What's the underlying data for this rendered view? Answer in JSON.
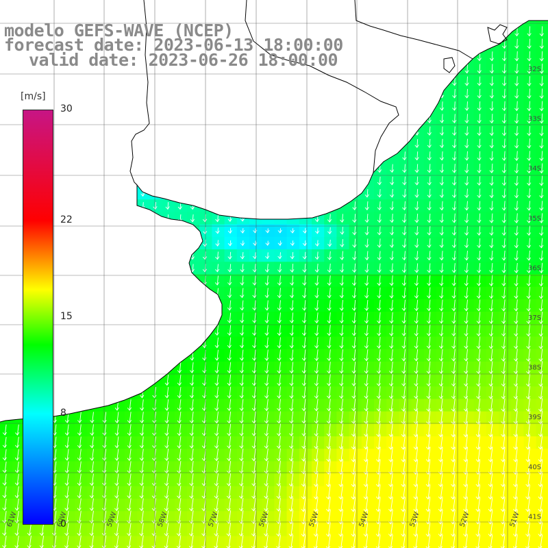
{
  "title": {
    "line1": "modelo GEFS-WAVE (NCEP)",
    "line2": "forecast date: 2023-06-13 18:00:00",
    "line3": "valid date: 2023-06-26 18:00:00"
  },
  "colorbar": {
    "unit": "[m/s]",
    "ticks": [
      {
        "value": 30,
        "label": "30"
      },
      {
        "value": 22,
        "label": "22"
      },
      {
        "value": 15,
        "label": "15"
      },
      {
        "value": 8,
        "label": "8"
      },
      {
        "value": 0,
        "label": "0"
      }
    ],
    "range": [
      0,
      30
    ],
    "stops": [
      "#0000ff",
      "#00ffff",
      "#00ff00",
      "#ffff00",
      "#ff0000",
      "#c71585"
    ]
  },
  "map": {
    "lon_range": [
      -61.5,
      -50.5
    ],
    "lat_range": [
      -41.2,
      -31.2
    ],
    "lat_labels": [
      "32S",
      "33S",
      "34S",
      "35S",
      "36S",
      "37S",
      "38S",
      "39S",
      "40S",
      "41S"
    ],
    "lon_labels": [
      "61W",
      "60W",
      "59W",
      "58W",
      "57W",
      "56W",
      "55W",
      "54W",
      "53W",
      "52W",
      "51W"
    ],
    "land_color": "#ffffff",
    "wind_direction": "NNE-to-SSW (pointing south-southwest)",
    "legend_position": "left"
  }
}
